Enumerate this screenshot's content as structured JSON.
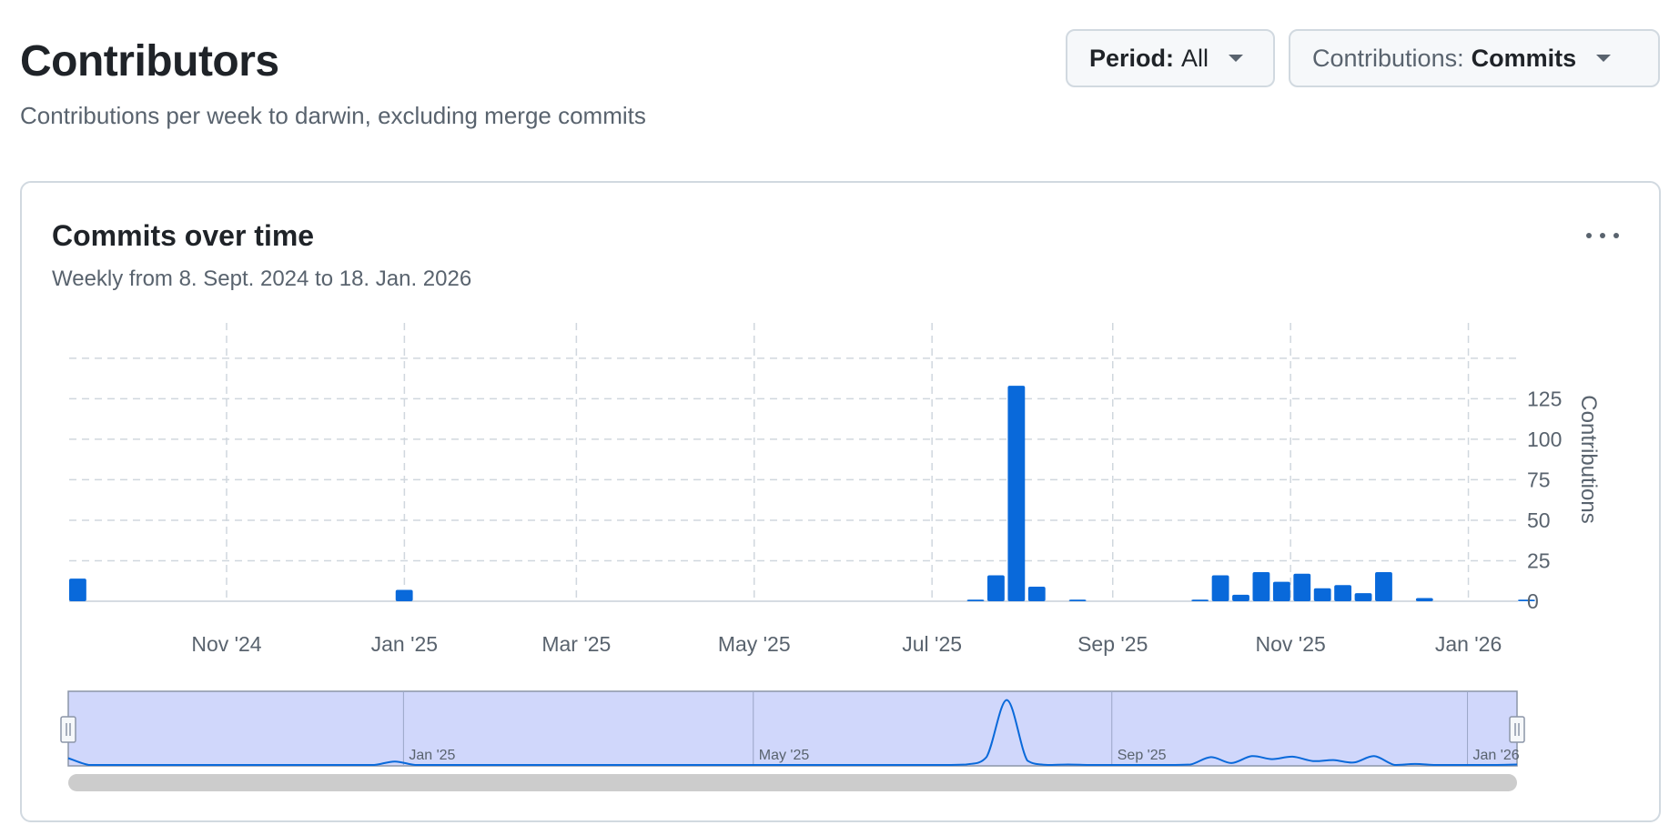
{
  "header": {
    "title": "Contributors",
    "subtitle": "Contributions per week to darwin, excluding merge commits"
  },
  "filters": {
    "period_label": "Period:",
    "period_value": "All",
    "contributions_label": "Contributions:",
    "contributions_value": "Commits"
  },
  "card": {
    "title": "Commits over time",
    "subtitle": "Weekly from 8. Sept. 2024 to 18. Jan. 2026",
    "more_icon": "kebab-horizontal-icon"
  },
  "colors": {
    "bar": "#0969da",
    "navigator_fill": "#d0d7fb",
    "grid": "#d0d7de"
  },
  "chart_data": {
    "type": "bar",
    "ylabel": "Contributions",
    "ylim": [
      0,
      160
    ],
    "yticks": [
      0,
      25,
      50,
      75,
      100,
      125
    ],
    "grid": true,
    "x_tick_labels": [
      "Nov '24",
      "Jan '25",
      "Mar '25",
      "May '25",
      "Jul '25",
      "Sep '25",
      "Nov '25",
      "Jan '26"
    ],
    "bars": [
      {
        "week": "2024-09-08",
        "value": 14
      },
      {
        "week": "2024-12-29",
        "value": 7
      },
      {
        "week": "2025-07-13",
        "value": 1
      },
      {
        "week": "2025-07-20",
        "value": 16
      },
      {
        "week": "2025-07-27",
        "value": 133
      },
      {
        "week": "2025-08-03",
        "value": 9
      },
      {
        "week": "2025-08-17",
        "value": 1
      },
      {
        "week": "2025-09-28",
        "value": 1
      },
      {
        "week": "2025-10-05",
        "value": 16
      },
      {
        "week": "2025-10-12",
        "value": 4
      },
      {
        "week": "2025-10-19",
        "value": 18
      },
      {
        "week": "2025-10-26",
        "value": 12
      },
      {
        "week": "2025-11-02",
        "value": 17
      },
      {
        "week": "2025-11-09",
        "value": 8
      },
      {
        "week": "2025-11-16",
        "value": 10
      },
      {
        "week": "2025-11-23",
        "value": 5
      },
      {
        "week": "2025-11-30",
        "value": 18
      },
      {
        "week": "2025-12-14",
        "value": 2
      },
      {
        "week": "2026-01-18",
        "value": 1
      }
    ],
    "navigator": {
      "labels": [
        "Jan '25",
        "May '25",
        "Sep '25",
        "Jan '26"
      ]
    }
  }
}
